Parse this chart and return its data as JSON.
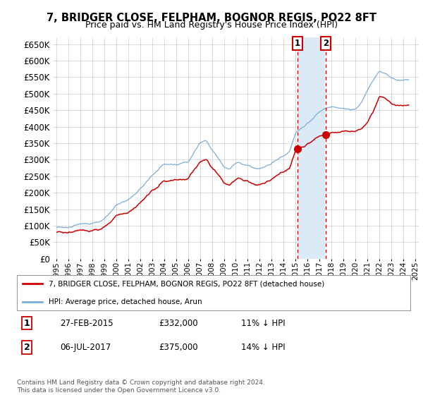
{
  "title": "7, BRIDGER CLOSE, FELPHAM, BOGNOR REGIS, PO22 8FT",
  "subtitle": "Price paid vs. HM Land Registry's House Price Index (HPI)",
  "legend_label_red": "7, BRIDGER CLOSE, FELPHAM, BOGNOR REGIS, PO22 8FT (detached house)",
  "legend_label_blue": "HPI: Average price, detached house, Arun",
  "footer1": "Contains HM Land Registry data © Crown copyright and database right 2024.",
  "footer2": "This data is licensed under the Open Government Licence v3.0.",
  "transaction1": {
    "num": "1",
    "date": "27-FEB-2015",
    "price": "£332,000",
    "hpi": "11% ↓ HPI"
  },
  "transaction2": {
    "num": "2",
    "date": "06-JUL-2017",
    "price": "£375,000",
    "hpi": "14% ↓ HPI"
  },
  "purchase1_year": 2015.15,
  "purchase1_price": 332000,
  "purchase2_year": 2017.51,
  "purchase2_price": 375000,
  "red_color": "#cc0000",
  "blue_color": "#7aaddc",
  "blue_fill_color": "#daeaf7",
  "background_color": "#ffffff",
  "grid_color": "#cccccc",
  "ylim": [
    0,
    670000
  ],
  "yticks": [
    0,
    50000,
    100000,
    150000,
    200000,
    250000,
    300000,
    350000,
    400000,
    450000,
    500000,
    550000,
    600000,
    650000
  ],
  "title_fontsize": 10.5,
  "subtitle_fontsize": 9
}
